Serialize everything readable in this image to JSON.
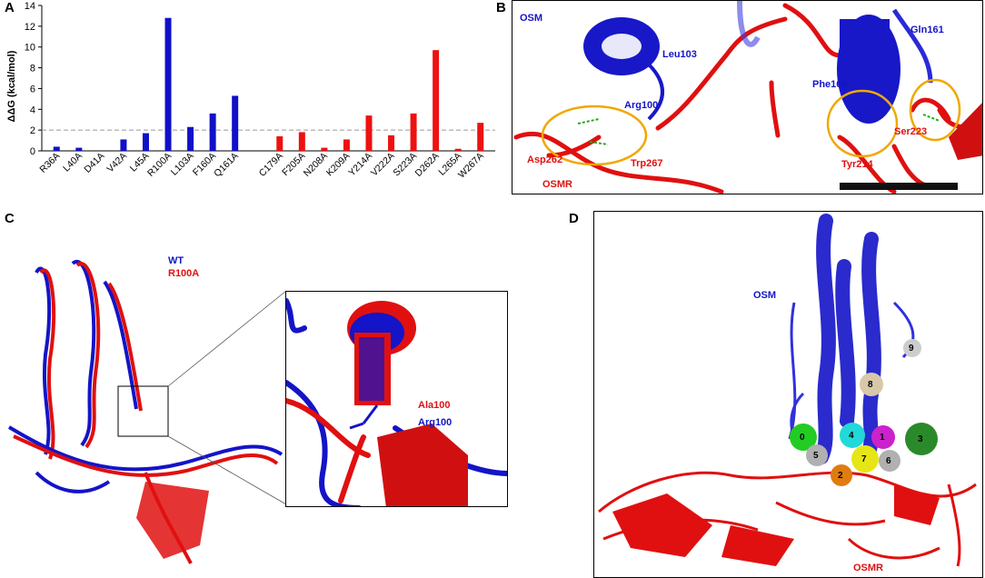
{
  "panels": {
    "a": {
      "label": "A"
    },
    "b": {
      "label": "B"
    },
    "c": {
      "label": "C"
    },
    "d": {
      "label": "D"
    }
  },
  "chart_data": {
    "type": "bar",
    "ylabel": "ΔΔG (kcal/mol)",
    "ylim": [
      0,
      14
    ],
    "yticks": [
      0,
      2,
      4,
      6,
      8,
      10,
      12,
      14
    ],
    "threshold": 2,
    "categories": [
      "R36A",
      "L40A",
      "D41A",
      "V42A",
      "L45A",
      "R100A",
      "L103A",
      "F160A",
      "Q161A",
      "C179A",
      "F205A",
      "N208A",
      "K209A",
      "Y214A",
      "V222A",
      "S223A",
      "D262A",
      "L265A",
      "W267A"
    ],
    "values": [
      0.4,
      0.3,
      0.0,
      1.1,
      1.7,
      12.8,
      2.3,
      3.6,
      5.3,
      1.4,
      1.8,
      0.3,
      1.1,
      3.4,
      1.5,
      3.6,
      9.7,
      0.2,
      2.7
    ],
    "groups": [
      "OSM",
      "OSM",
      "OSM",
      "OSM",
      "OSM",
      "OSM",
      "OSM",
      "OSM",
      "OSM",
      "OSMR",
      "OSMR",
      "OSMR",
      "OSMR",
      "OSMR",
      "OSMR",
      "OSMR",
      "OSMR",
      "OSMR",
      "OSMR"
    ],
    "colors": {
      "OSM": "#1010c8",
      "OSMR": "#ee1111"
    }
  },
  "panel_b": {
    "osm_label": "OSM",
    "osmr_label": "OSMR",
    "residues_blue": [
      "Leu103",
      "Arg100",
      "Phe160",
      "Gln161"
    ],
    "residues_red": [
      "Asp262",
      "Trp267",
      "Tyr214",
      "Ser223"
    ]
  },
  "panel_c": {
    "legend_wt": "WT",
    "legend_mut": "R100A",
    "inset_red": "Ala100",
    "inset_blue": "Arg100"
  },
  "panel_d": {
    "osm_label": "OSM",
    "osmr_label": "OSMR",
    "patches": [
      "0",
      "1",
      "2",
      "3",
      "4",
      "5",
      "6",
      "7",
      "8",
      "9"
    ]
  },
  "colors": {
    "blue": "#1414c8",
    "red": "#e01010",
    "orange": "#f0a800"
  }
}
